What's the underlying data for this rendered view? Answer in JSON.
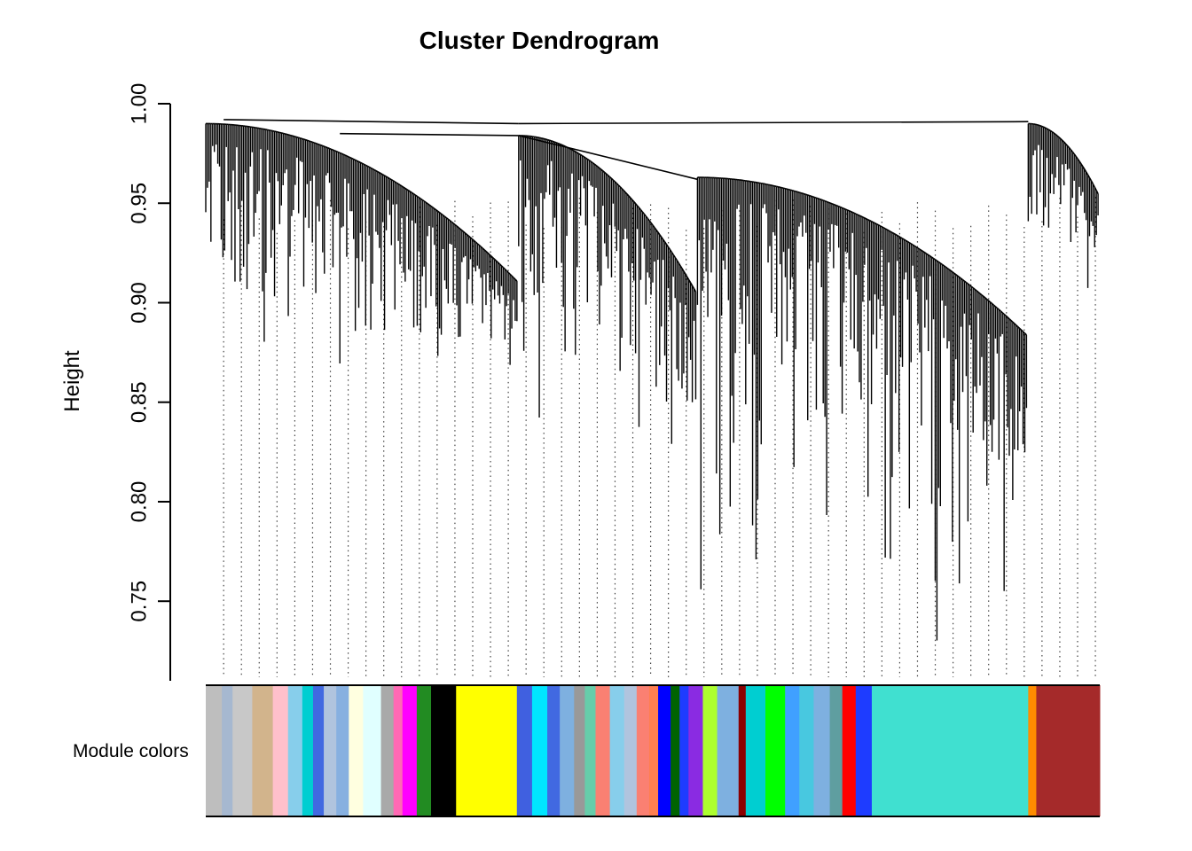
{
  "chart_data": {
    "type": "dendrogram",
    "title": "Cluster Dendrogram",
    "ylabel": "Height",
    "xlabel": "",
    "ylim": [
      0.71,
      1.0
    ],
    "yticks": [
      "0.75",
      "0.80",
      "0.85",
      "0.90",
      "0.95",
      "1.00"
    ],
    "ytick_values": [
      0.75,
      0.8,
      0.85,
      0.9,
      0.95,
      1.0
    ],
    "root_height": 0.991,
    "dotted_guides": true,
    "module_colors_label": "Module colors",
    "branches": [
      {
        "range": [
          0.0,
          0.35
        ],
        "top": 0.99,
        "min": 0.865
      },
      {
        "range": [
          0.35,
          0.55
        ],
        "top": 0.984,
        "min": 0.835
      },
      {
        "range": [
          0.55,
          0.92
        ],
        "top": 0.963,
        "min": 0.727
      },
      {
        "range": [
          0.92,
          1.0
        ],
        "top": 0.99,
        "min": 0.913
      }
    ],
    "module_bands": [
      {
        "start": 0.0,
        "end": 0.018,
        "color": "#bebebe"
      },
      {
        "start": 0.018,
        "end": 0.03,
        "color": "#a6b8d0"
      },
      {
        "start": 0.03,
        "end": 0.052,
        "color": "#c8c8c8"
      },
      {
        "start": 0.052,
        "end": 0.075,
        "color": "#d2b48c"
      },
      {
        "start": 0.075,
        "end": 0.092,
        "color": "#ffc0cb"
      },
      {
        "start": 0.092,
        "end": 0.108,
        "color": "#87ceeb"
      },
      {
        "start": 0.108,
        "end": 0.12,
        "color": "#00ced1"
      },
      {
        "start": 0.12,
        "end": 0.132,
        "color": "#4169e1"
      },
      {
        "start": 0.132,
        "end": 0.146,
        "color": "#b0c4de"
      },
      {
        "start": 0.146,
        "end": 0.16,
        "color": "#87b0e0"
      },
      {
        "start": 0.16,
        "end": 0.176,
        "color": "#ffffe0"
      },
      {
        "start": 0.176,
        "end": 0.196,
        "color": "#e0ffff"
      },
      {
        "start": 0.196,
        "end": 0.21,
        "color": "#a9a9a9"
      },
      {
        "start": 0.21,
        "end": 0.22,
        "color": "#ff69b4"
      },
      {
        "start": 0.22,
        "end": 0.236,
        "color": "#ff00ff"
      },
      {
        "start": 0.236,
        "end": 0.252,
        "color": "#228b22"
      },
      {
        "start": 0.252,
        "end": 0.28,
        "color": "#000000"
      },
      {
        "start": 0.28,
        "end": 0.348,
        "color": "#ffff00"
      },
      {
        "start": 0.348,
        "end": 0.365,
        "color": "#4060e0"
      },
      {
        "start": 0.365,
        "end": 0.382,
        "color": "#00e5ff"
      },
      {
        "start": 0.382,
        "end": 0.396,
        "color": "#4169e1"
      },
      {
        "start": 0.396,
        "end": 0.412,
        "color": "#7eb0e0"
      },
      {
        "start": 0.412,
        "end": 0.424,
        "color": "#999999"
      },
      {
        "start": 0.424,
        "end": 0.436,
        "color": "#66cdaa"
      },
      {
        "start": 0.436,
        "end": 0.452,
        "color": "#fa8072"
      },
      {
        "start": 0.452,
        "end": 0.468,
        "color": "#87ceeb"
      },
      {
        "start": 0.468,
        "end": 0.482,
        "color": "#b0c4de"
      },
      {
        "start": 0.482,
        "end": 0.496,
        "color": "#fa8072"
      },
      {
        "start": 0.496,
        "end": 0.506,
        "color": "#ff7f50"
      },
      {
        "start": 0.506,
        "end": 0.52,
        "color": "#0000ff"
      },
      {
        "start": 0.52,
        "end": 0.53,
        "color": "#006400"
      },
      {
        "start": 0.53,
        "end": 0.54,
        "color": "#1e3cff"
      },
      {
        "start": 0.54,
        "end": 0.556,
        "color": "#8a2be2"
      },
      {
        "start": 0.556,
        "end": 0.572,
        "color": "#adff2f"
      },
      {
        "start": 0.572,
        "end": 0.596,
        "color": "#7eb0e0"
      },
      {
        "start": 0.596,
        "end": 0.604,
        "color": "#8b0000"
      },
      {
        "start": 0.604,
        "end": 0.626,
        "color": "#00ced1"
      },
      {
        "start": 0.626,
        "end": 0.648,
        "color": "#00ff00"
      },
      {
        "start": 0.648,
        "end": 0.664,
        "color": "#40a0ff"
      },
      {
        "start": 0.664,
        "end": 0.68,
        "color": "#48c8e0"
      },
      {
        "start": 0.68,
        "end": 0.698,
        "color": "#7eb0e0"
      },
      {
        "start": 0.698,
        "end": 0.712,
        "color": "#5f9ea0"
      },
      {
        "start": 0.712,
        "end": 0.727,
        "color": "#ff0000"
      },
      {
        "start": 0.727,
        "end": 0.745,
        "color": "#1e3cff"
      },
      {
        "start": 0.745,
        "end": 0.92,
        "color": "#40e0d0"
      },
      {
        "start": 0.92,
        "end": 0.929,
        "color": "#ff8c00"
      },
      {
        "start": 0.929,
        "end": 1.0,
        "color": "#a52a2a"
      }
    ]
  }
}
